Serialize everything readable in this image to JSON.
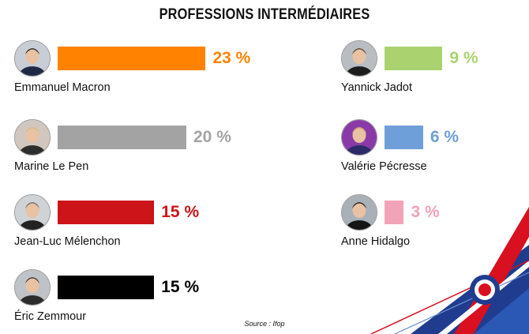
{
  "chart_data": {
    "type": "bar",
    "title": "PROFESSIONS INTERMÉDIAIRES",
    "categories": [
      "Emmanuel Macron",
      "Marine Le Pen",
      "Jean-Luc Mélenchon",
      "Éric Zemmour",
      "Yannick Jadot",
      "Valérie Pécresse",
      "Anne Hidalgo"
    ],
    "values": [
      23,
      20,
      15,
      15,
      9,
      6,
      3
    ],
    "value_labels": [
      "23 %",
      "20 %",
      "15 %",
      "15 %",
      "9 %",
      "6 %",
      "3 %"
    ],
    "colors": [
      "#ff8200",
      "#a3a3a3",
      "#cc1419",
      "#000000",
      "#aad36f",
      "#6f9fd8",
      "#f2a3b8"
    ],
    "label_colors": [
      "#ff8200",
      "#a3a3a3",
      "#cc1419",
      "#000000",
      "#aad36f",
      "#6f9fd8",
      "#f2a3b8"
    ],
    "source": "Source :  Ifop"
  }
}
